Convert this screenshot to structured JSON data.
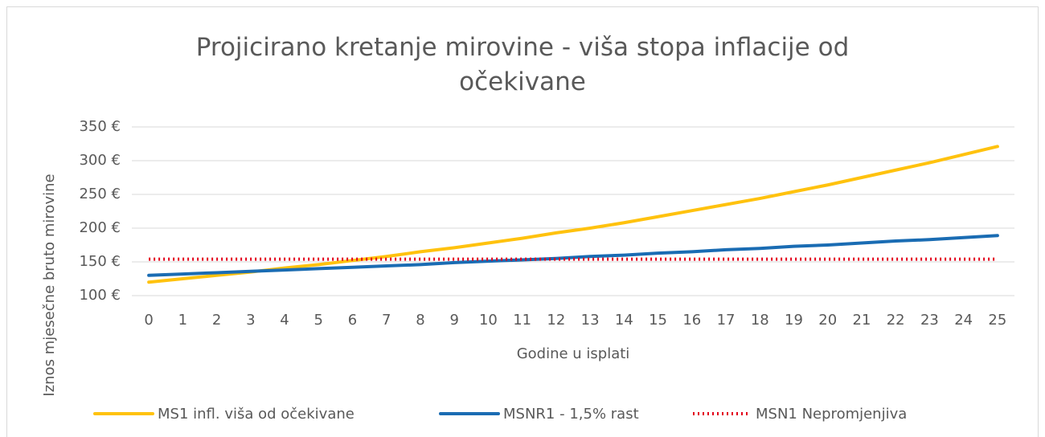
{
  "chart_data": {
    "type": "line",
    "title": "Projicirano kretanje mirovine - viša stopa inflacije od očekivane",
    "x_label": "Godine u isplati",
    "y_label": "Iznos mjesečne bruto mirovine",
    "categories": [
      "0",
      "1",
      "2",
      "3",
      "4",
      "5",
      "6",
      "7",
      "8",
      "9",
      "10",
      "11",
      "12",
      "13",
      "14",
      "15",
      "16",
      "17",
      "18",
      "19",
      "20",
      "21",
      "22",
      "23",
      "24",
      "25"
    ],
    "series": [
      {
        "name": "MS1 infl. viša od očekivane",
        "color": "#ffc20e",
        "style": "solid",
        "values": [
          120,
          125,
          130,
          135,
          141,
          146,
          152,
          158,
          165,
          171,
          178,
          185,
          193,
          200,
          208,
          217,
          226,
          235,
          244,
          254,
          264,
          275,
          286,
          297,
          309,
          321
        ]
      },
      {
        "name": "MSNR1 - 1,5% rast",
        "color": "#1a6cb3",
        "style": "solid",
        "values": [
          130,
          132,
          134,
          136,
          138,
          140,
          142,
          144,
          146,
          149,
          151,
          153,
          155,
          158,
          160,
          163,
          165,
          168,
          170,
          173,
          175,
          178,
          181,
          183,
          186,
          189
        ]
      },
      {
        "name": "MSN1 Nepromjenjiva",
        "color": "#e3001b",
        "style": "dotted",
        "values": [
          154,
          154,
          154,
          154,
          154,
          154,
          154,
          154,
          154,
          154,
          154,
          154,
          154,
          154,
          154,
          154,
          154,
          154,
          154,
          154,
          154,
          154,
          154,
          154,
          154,
          154
        ]
      }
    ],
    "ylim": [
      100,
      350
    ],
    "yticks": [
      {
        "value": 100,
        "label": "100 €"
      },
      {
        "value": 150,
        "label": "150 €"
      },
      {
        "value": 200,
        "label": "200 €"
      },
      {
        "value": 250,
        "label": "250 €"
      },
      {
        "value": 300,
        "label": "300 €"
      },
      {
        "value": 350,
        "label": "350 €"
      }
    ],
    "grid": true,
    "legend": "bottom"
  }
}
